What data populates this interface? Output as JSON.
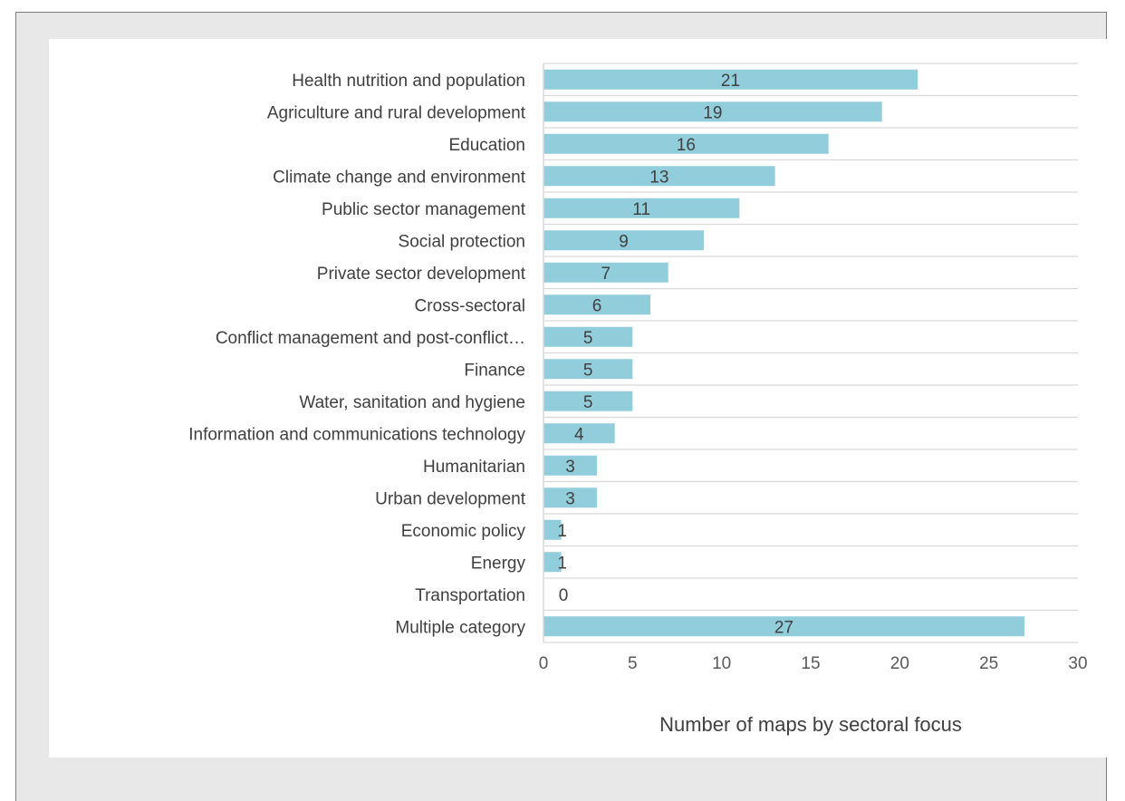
{
  "chart_data": {
    "type": "bar",
    "orientation": "horizontal",
    "categories": [
      "Health nutrition and population",
      "Agriculture and rural development",
      "Education",
      "Climate change and environment",
      "Public sector management",
      "Social protection",
      "Private sector development",
      "Cross-sectoral",
      "Conflict management and post-conflict…",
      "Finance",
      "Water, sanitation and hygiene",
      "Information and communications technology",
      "Humanitarian",
      "Urban development",
      "Economic policy",
      "Energy",
      "Transportation",
      "Multiple category"
    ],
    "values": [
      21,
      19,
      16,
      13,
      11,
      9,
      7,
      6,
      5,
      5,
      5,
      4,
      3,
      3,
      1,
      1,
      0,
      27
    ],
    "xlabel": "Number of maps by sectoral focus",
    "ylabel": "",
    "xlim": [
      0,
      30
    ],
    "xticks": [
      0,
      5,
      10,
      15,
      20,
      25,
      30
    ],
    "grid": "horizontal",
    "legend": "none",
    "colors": {
      "bar": "#92cddc",
      "grid": "#d9d9d9",
      "frame_bg": "#e8e8e8",
      "frame_border": "#808080"
    }
  }
}
